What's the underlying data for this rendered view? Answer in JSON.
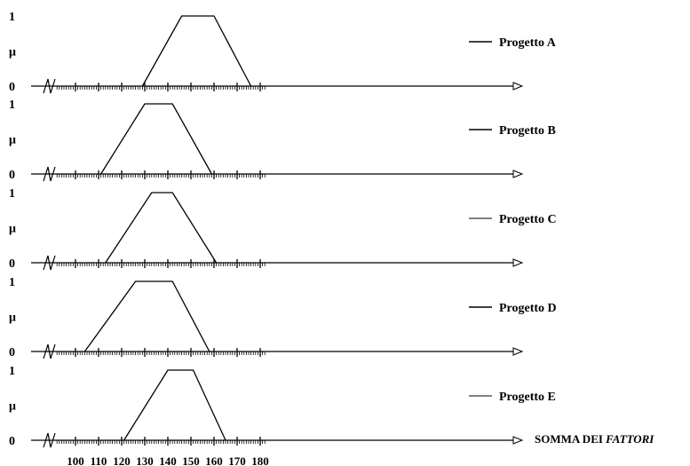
{
  "chart_data": {
    "type": "line",
    "xlim": [
      92,
      182
    ],
    "x_ticks": [
      100,
      110,
      120,
      130,
      140,
      150,
      160,
      170,
      180
    ],
    "x_tick_labels": [
      "100",
      "110",
      "120",
      "130",
      "140",
      "150",
      "160",
      "170",
      "180"
    ],
    "x_minor_step": 1,
    "x_axis_break": true,
    "ylabel": "μ",
    "y_tick_labels": [
      "0",
      "1"
    ],
    "xlabel_plain": "SOMMA DEI ",
    "xlabel_italic": "FATTORI",
    "series": [
      {
        "name": "Progetto A",
        "x": [
          129,
          146,
          160,
          176
        ],
        "y": [
          0,
          1,
          1,
          0
        ]
      },
      {
        "name": "Progetto B",
        "x": [
          111,
          130,
          142,
          159
        ],
        "y": [
          0,
          1,
          1,
          0
        ]
      },
      {
        "name": "Progetto C",
        "x": [
          113,
          133,
          142,
          161
        ],
        "y": [
          0,
          1,
          1,
          0
        ]
      },
      {
        "name": "Progetto D",
        "x": [
          104,
          126,
          142,
          158
        ],
        "y": [
          0,
          1,
          1,
          0
        ]
      },
      {
        "name": "Progetto E",
        "x": [
          121,
          140,
          151,
          165
        ],
        "y": [
          0,
          1,
          1,
          0
        ]
      }
    ]
  }
}
